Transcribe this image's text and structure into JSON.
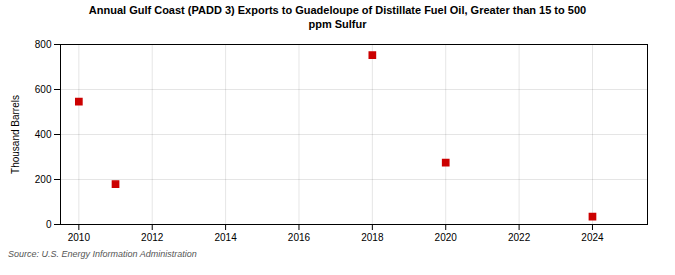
{
  "chart_data": {
    "type": "scatter",
    "title": "Annual Gulf Coast (PADD 3) Exports to Guadeloupe of Distillate Fuel Oil, Greater than 15 to 500\nppm Sulfur",
    "ylabel": "Thousand Barrels",
    "annotations": [
      "Source: U.S. Energy Information Administration"
    ],
    "x": [
      2010,
      2011,
      2018,
      2020,
      2024
    ],
    "values": [
      546,
      179,
      753,
      275,
      35
    ],
    "color": "#cc0000",
    "marker": "square",
    "xlim": [
      2009.5,
      2025.5
    ],
    "xticks": [
      2010,
      2012,
      2014,
      2016,
      2018,
      2020,
      2022,
      2024
    ],
    "ylim": [
      0,
      800
    ],
    "yticks": [
      0,
      200,
      400,
      600,
      800
    ],
    "grid": true
  }
}
